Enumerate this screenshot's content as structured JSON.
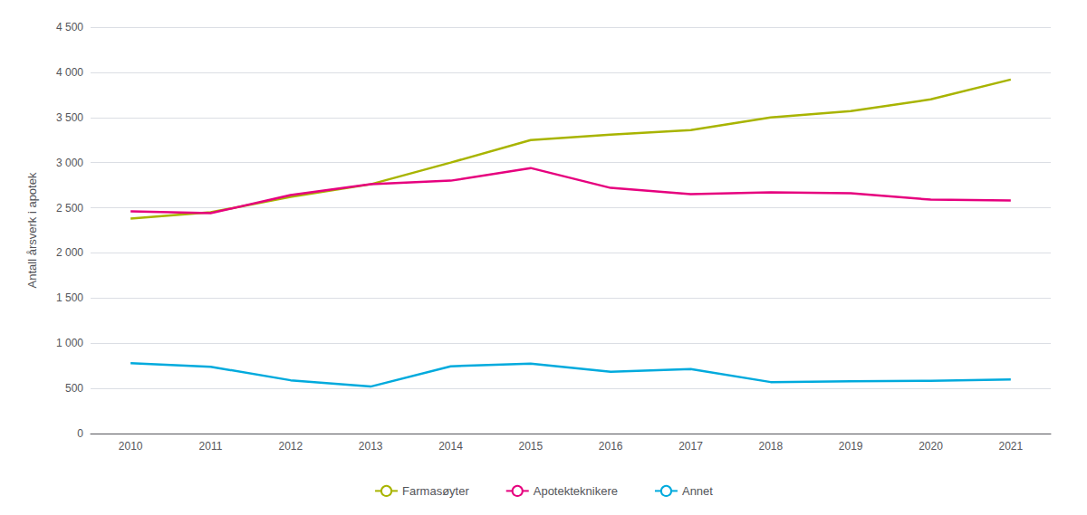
{
  "chart_data": {
    "type": "line",
    "x": [
      2010,
      2011,
      2012,
      2013,
      2014,
      2015,
      2016,
      2017,
      2018,
      2019,
      2020,
      2021
    ],
    "series": [
      {
        "name": "Farmasøyter",
        "color": "#a8b400",
        "values": [
          2380,
          2450,
          2620,
          2760,
          3000,
          3250,
          3310,
          3360,
          3500,
          3570,
          3700,
          3920
        ]
      },
      {
        "name": "Apotekteknikere",
        "color": "#e6007e",
        "values": [
          2460,
          2440,
          2640,
          2760,
          2800,
          2940,
          2720,
          2650,
          2670,
          2660,
          2590,
          2580
        ]
      },
      {
        "name": "Annet",
        "color": "#00aadd",
        "values": [
          780,
          740,
          590,
          520,
          745,
          775,
          685,
          715,
          570,
          580,
          585,
          600
        ]
      }
    ],
    "ylabel": "Antall årsverk i apotek",
    "xlim": [
      2009.5,
      2021.5
    ],
    "xticks": [
      2010,
      2011,
      2012,
      2013,
      2014,
      2015,
      2016,
      2017,
      2018,
      2019,
      2020,
      2021
    ],
    "ylim": [
      0,
      4500
    ],
    "yticks": [
      0,
      500,
      {
        "value": 1000,
        "label": "1 000"
      },
      {
        "value": 1500,
        "label": "1 500"
      },
      {
        "value": 2000,
        "label": "2 000"
      },
      {
        "value": 2500,
        "label": "2 500"
      },
      {
        "value": 3000,
        "label": "3 000"
      },
      {
        "value": 3500,
        "label": "3 500"
      },
      {
        "value": 4000,
        "label": "4 000"
      },
      {
        "value": 4500,
        "label": "4 500"
      }
    ],
    "grid": true,
    "legend": "bottom"
  }
}
